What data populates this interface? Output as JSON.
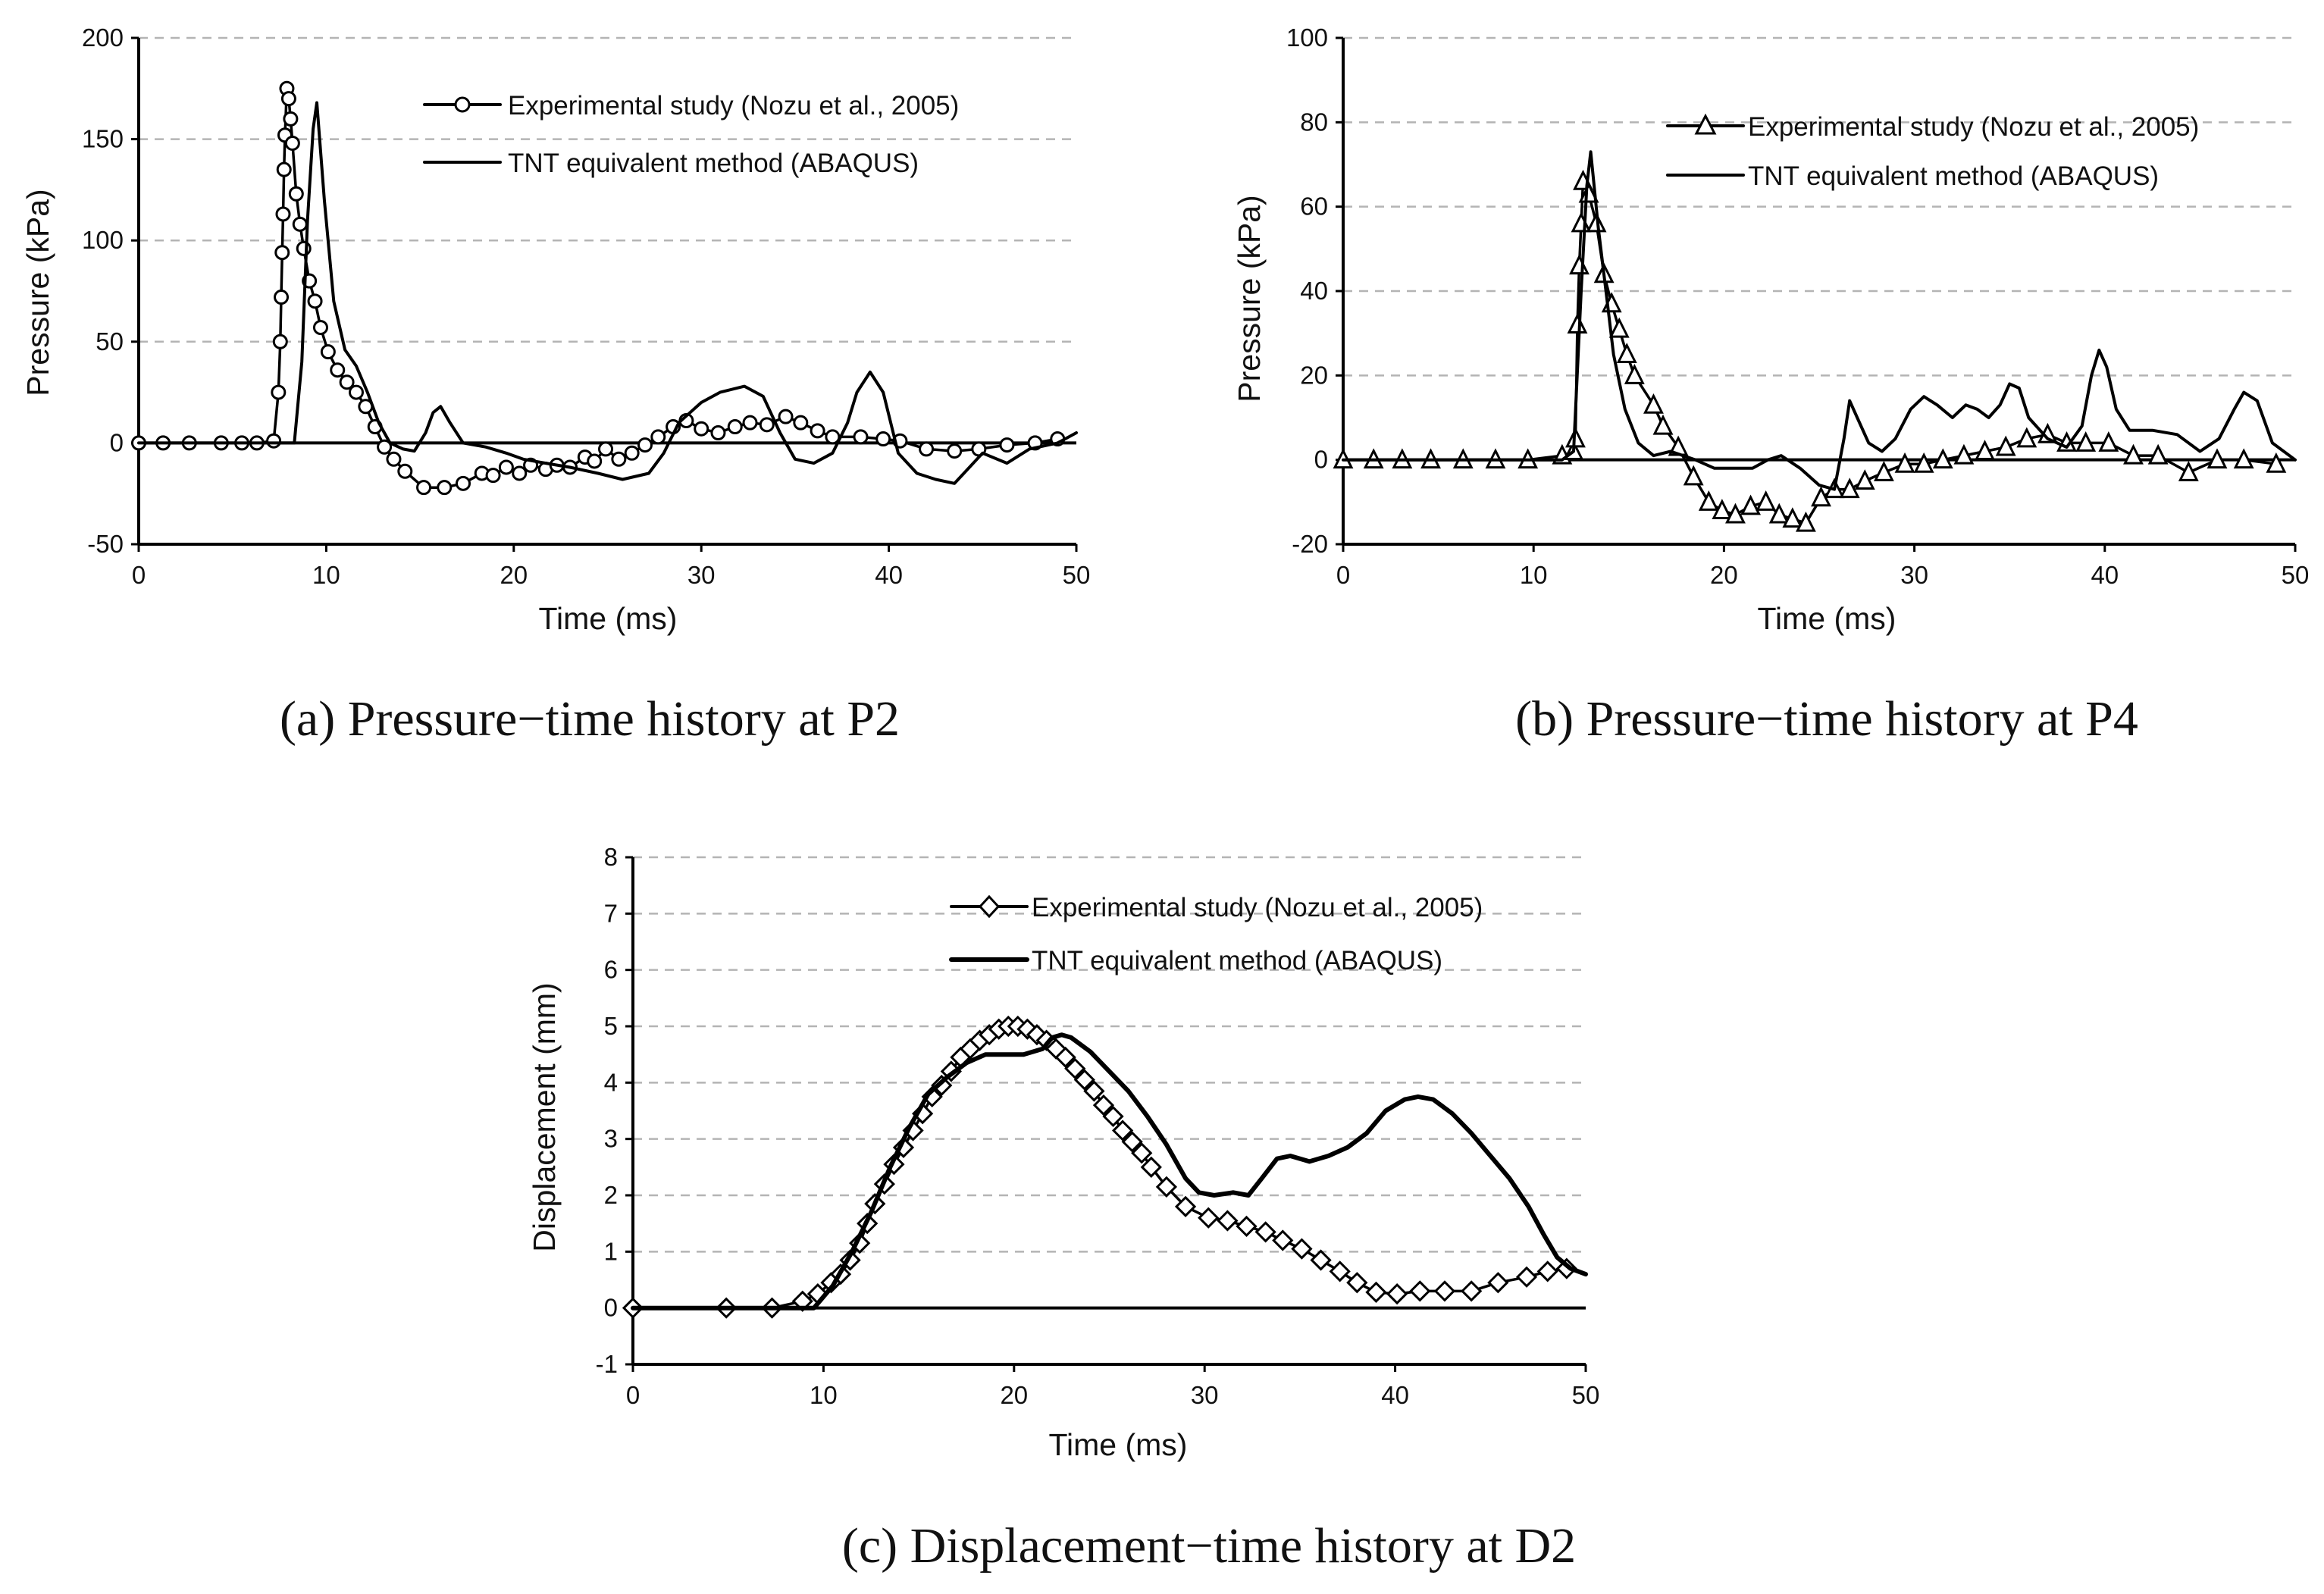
{
  "chart_data": [
    {
      "id": "a",
      "type": "line",
      "caption": "(a) Pressure−time history at P2",
      "xlabel": "Time (ms)",
      "ylabel": "Pressure (kPa)",
      "xlim": [
        0,
        50
      ],
      "ylim": [
        -50,
        200
      ],
      "xticks": [
        0,
        10,
        20,
        30,
        40,
        50
      ],
      "yticks": [
        -50,
        0,
        50,
        100,
        150,
        200
      ],
      "legend_position": "top-right",
      "series": [
        {
          "name": "Experimental study (Nozu et al., 2005)",
          "marker": "circle",
          "x": [
            0,
            1.3,
            2.7,
            4.4,
            5.5,
            6.3,
            7.2,
            7.45,
            7.55,
            7.6,
            7.65,
            7.7,
            7.75,
            7.8,
            7.9,
            8.0,
            8.1,
            8.2,
            8.4,
            8.6,
            8.8,
            9.1,
            9.4,
            9.7,
            10.1,
            10.6,
            11.1,
            11.6,
            12.1,
            12.6,
            13.1,
            13.6,
            14.2,
            15.2,
            16.3,
            17.3,
            18.3,
            18.9,
            19.6,
            20.3,
            20.9,
            21.7,
            22.3,
            23.0,
            23.8,
            24.3,
            24.9,
            25.6,
            26.3,
            27.0,
            27.7,
            28.5,
            29.2,
            30.0,
            30.9,
            31.8,
            32.6,
            33.5,
            34.5,
            35.3,
            36.2,
            37.0,
            38.5,
            39.7,
            40.6,
            42.0,
            43.5,
            44.8,
            46.3,
            47.8,
            49.0
          ],
          "y": [
            0,
            0,
            0,
            0,
            0,
            0,
            1,
            25,
            50,
            72,
            94,
            113,
            135,
            152,
            175,
            170,
            160,
            148,
            123,
            108,
            96,
            80,
            70,
            57,
            45,
            36,
            30,
            25,
            18,
            8,
            -2,
            -8,
            -14,
            -22,
            -22,
            -20,
            -15,
            -16,
            -12,
            -15,
            -11,
            -13,
            -11,
            -12,
            -7,
            -9,
            -3,
            -8,
            -5,
            -1,
            3,
            8,
            11,
            7,
            5,
            8,
            10,
            9,
            13,
            10,
            6,
            3,
            3,
            2,
            1,
            -3,
            -4,
            -3,
            -1,
            0,
            2
          ]
        },
        {
          "name": "TNT equivalent method (ABAQUS)",
          "marker": "none",
          "x": [
            0,
            5,
            8.3,
            8.7,
            9.0,
            9.3,
            9.5,
            9.9,
            10.4,
            11.0,
            11.6,
            12.2,
            12.8,
            13.4,
            14.1,
            14.7,
            15.3,
            15.7,
            16.1,
            16.6,
            17.3,
            18.5,
            19.6,
            20.5,
            21.7,
            23.0,
            24.5,
            25.8,
            27.2,
            28.0,
            28.8,
            30.0,
            31.0,
            32.3,
            33.3,
            34.2,
            35.0,
            36.0,
            37.0,
            37.8,
            38.3,
            39.0,
            39.7,
            40.5,
            41.5,
            42.5,
            43.5,
            45.0,
            46.3,
            47.5,
            49.0,
            50.0
          ],
          "y": [
            0,
            0,
            0,
            40,
            110,
            155,
            168,
            120,
            70,
            46,
            38,
            25,
            10,
            0,
            -3,
            -4,
            5,
            15,
            18,
            10,
            0,
            -2,
            -5,
            -8,
            -10,
            -12,
            -15,
            -18,
            -15,
            -5,
            10,
            20,
            25,
            28,
            23,
            5,
            -8,
            -10,
            -5,
            10,
            25,
            35,
            25,
            -5,
            -15,
            -18,
            -20,
            -5,
            -10,
            -3,
            0,
            5
          ]
        }
      ]
    },
    {
      "id": "b",
      "type": "line",
      "caption": "(b) Pressure−time history at P4",
      "xlabel": "Time (ms)",
      "ylabel": "Pressure (kPa)",
      "xlim": [
        0,
        50
      ],
      "ylim": [
        -20,
        100
      ],
      "xticks": [
        0,
        10,
        20,
        30,
        40,
        50
      ],
      "yticks": [
        -20,
        0,
        20,
        40,
        60,
        80,
        100
      ],
      "legend_position": "top-right",
      "series": [
        {
          "name": "Experimental study (Nozu et al., 2005)",
          "marker": "triangle",
          "x": [
            0,
            1.6,
            3.1,
            4.6,
            6.3,
            8.0,
            9.7,
            11.5,
            12.1,
            12.2,
            12.3,
            12.4,
            12.5,
            12.6,
            12.9,
            13.3,
            13.7,
            14.1,
            14.5,
            14.9,
            15.3,
            16.3,
            16.8,
            17.6,
            18.4,
            19.2,
            19.9,
            20.6,
            21.4,
            22.2,
            22.9,
            23.6,
            24.3,
            25.1,
            25.8,
            26.6,
            27.4,
            28.4,
            29.5,
            30.5,
            31.5,
            32.6,
            33.7,
            34.8,
            35.9,
            37.0,
            38.0,
            39.0,
            40.2,
            41.5,
            42.8,
            44.4,
            45.9,
            47.3,
            49.0
          ],
          "y": [
            0,
            0,
            0,
            0,
            0,
            0,
            0,
            1,
            2,
            5,
            32,
            46,
            56,
            66,
            63,
            56,
            44,
            37,
            31,
            25,
            20,
            13,
            8,
            3,
            -4,
            -10,
            -12,
            -13,
            -11,
            -10,
            -13,
            -14,
            -15,
            -9,
            -7,
            -7,
            -5,
            -3,
            -1,
            -1,
            0,
            1,
            2,
            3,
            5,
            6,
            4,
            4,
            4,
            1,
            1,
            -3,
            0,
            0,
            -1
          ]
        },
        {
          "name": "TNT equivalent method (ABAQUS)",
          "marker": "none",
          "x": [
            0,
            6,
            11.5,
            12.1,
            12.5,
            12.8,
            13.0,
            13.4,
            13.8,
            14.2,
            14.8,
            15.5,
            16.3,
            17.2,
            18.5,
            19.5,
            20.5,
            21.5,
            22.3,
            23.0,
            24.0,
            25.0,
            25.8,
            26.3,
            26.6,
            27.0,
            27.6,
            28.3,
            29.0,
            29.8,
            30.5,
            31.2,
            32.0,
            32.7,
            33.3,
            33.9,
            34.5,
            35.0,
            35.5,
            36.0,
            37.0,
            38.0,
            38.8,
            39.3,
            39.7,
            40.1,
            40.6,
            41.3,
            42.5,
            43.8,
            45.0,
            46.0,
            46.8,
            47.3,
            48.0,
            48.8,
            50.0
          ],
          "y": [
            0,
            0,
            0,
            2,
            40,
            65,
            73,
            55,
            40,
            25,
            12,
            4,
            1,
            2,
            0,
            -2,
            -2,
            -2,
            0,
            1,
            -2,
            -6,
            -7,
            5,
            14,
            10,
            4,
            2,
            5,
            12,
            15,
            13,
            10,
            13,
            12,
            10,
            13,
            18,
            17,
            10,
            5,
            3,
            8,
            20,
            26,
            22,
            12,
            7,
            7,
            6,
            2,
            5,
            12,
            16,
            14,
            4,
            0
          ]
        }
      ]
    },
    {
      "id": "c",
      "type": "line",
      "caption": "(c) Displacement−time history at D2",
      "xlabel": "Time (ms)",
      "ylabel": "Displacement (mm)",
      "xlim": [
        0,
        50
      ],
      "ylim": [
        -1,
        8
      ],
      "xticks": [
        0,
        10,
        20,
        30,
        40,
        50
      ],
      "yticks": [
        -1,
        0,
        1,
        2,
        3,
        4,
        5,
        6,
        7,
        8
      ],
      "legend_position": "top-right",
      "series": [
        {
          "name": "Experimental study (Nozu et al., 2005)",
          "marker": "diamond",
          "x": [
            0,
            4.9,
            7.3,
            8.9,
            9.7,
            10.4,
            10.9,
            11.4,
            11.9,
            12.3,
            12.7,
            13.2,
            13.7,
            14.2,
            14.7,
            15.2,
            15.7,
            16.2,
            16.7,
            17.2,
            17.7,
            18.2,
            18.7,
            19.2,
            19.7,
            20.2,
            20.7,
            21.2,
            21.7,
            22.2,
            22.7,
            23.2,
            23.7,
            24.2,
            24.7,
            25.2,
            25.7,
            26.2,
            26.7,
            27.2,
            28.0,
            29.0,
            30.2,
            31.2,
            32.2,
            33.2,
            34.1,
            35.1,
            36.1,
            37.1,
            38.0,
            39.0,
            40.1,
            41.3,
            42.6,
            44.0,
            45.4,
            46.9,
            48.0,
            49.0
          ],
          "y": [
            0,
            0,
            0,
            0.12,
            0.25,
            0.45,
            0.6,
            0.85,
            1.15,
            1.5,
            1.85,
            2.2,
            2.55,
            2.85,
            3.15,
            3.45,
            3.75,
            3.95,
            4.2,
            4.45,
            4.6,
            4.75,
            4.85,
            4.95,
            5.0,
            5.0,
            4.95,
            4.85,
            4.75,
            4.6,
            4.45,
            4.25,
            4.05,
            3.85,
            3.6,
            3.4,
            3.15,
            2.95,
            2.75,
            2.5,
            2.15,
            1.8,
            1.6,
            1.55,
            1.45,
            1.35,
            1.2,
            1.05,
            0.85,
            0.65,
            0.45,
            0.28,
            0.25,
            0.3,
            0.3,
            0.3,
            0.45,
            0.55,
            0.65,
            0.7
          ]
        },
        {
          "name": "TNT equivalent method (ABAQUS)",
          "marker": "none",
          "x": [
            0,
            7,
            9.5,
            10.5,
            11.5,
            12.5,
            13.5,
            14.5,
            15.5,
            16.5,
            17.5,
            18.5,
            19.5,
            20.5,
            21.5,
            22.0,
            22.5,
            23.0,
            24.0,
            25.0,
            26.0,
            27.0,
            28.0,
            29.0,
            29.7,
            30.5,
            31.5,
            32.3,
            33.0,
            33.8,
            34.5,
            35.5,
            36.5,
            37.5,
            38.5,
            39.5,
            40.5,
            41.2,
            42.0,
            43.0,
            44.0,
            45.0,
            46.0,
            47.0,
            47.8,
            48.5,
            49.2,
            50.0
          ],
          "y": [
            0,
            0,
            0,
            0.4,
            1.0,
            1.7,
            2.5,
            3.2,
            3.8,
            4.1,
            4.35,
            4.5,
            4.5,
            4.5,
            4.6,
            4.8,
            4.85,
            4.8,
            4.55,
            4.2,
            3.85,
            3.4,
            2.9,
            2.3,
            2.05,
            2.0,
            2.05,
            2.0,
            2.3,
            2.65,
            2.7,
            2.6,
            2.7,
            2.85,
            3.1,
            3.5,
            3.7,
            3.75,
            3.7,
            3.45,
            3.1,
            2.7,
            2.3,
            1.8,
            1.3,
            0.9,
            0.7,
            0.6
          ]
        }
      ]
    }
  ]
}
